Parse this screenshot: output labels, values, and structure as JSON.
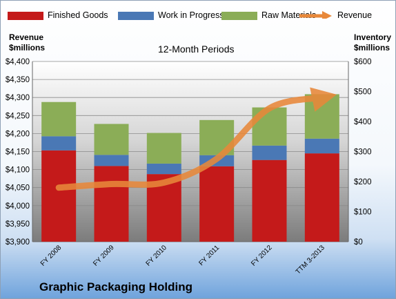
{
  "chart_data": {
    "type": "bar",
    "title": "12-Month Periods",
    "categories": [
      "FY 2008",
      "FY 2009",
      "FY 2010",
      "FY 2011",
      "FY 2012",
      "TTM 3-2013"
    ],
    "series": [
      {
        "name": "Finished Goods",
        "axis": "right",
        "stacked": true,
        "color": "#c41a1a",
        "values": [
          304,
          252,
          225,
          251,
          272,
          294
        ]
      },
      {
        "name": "Work in Progress",
        "axis": "right",
        "stacked": true,
        "color": "#4a78b5",
        "values": [
          47,
          37,
          35,
          37,
          48,
          49
        ]
      },
      {
        "name": "Raw Materials",
        "axis": "right",
        "stacked": true,
        "color": "#8bad57",
        "values": [
          114,
          103,
          102,
          117,
          127,
          148
        ]
      },
      {
        "name": "Revenue",
        "axis": "left",
        "type": "line",
        "color": "#e8883a",
        "values": [
          4050,
          4060,
          4064,
          4130,
          4270,
          4300
        ]
      }
    ],
    "left_axis": {
      "label_line1": "Revenue",
      "label_line2": "$millions",
      "range": [
        3900,
        4400
      ],
      "ticks": [
        "$3,900",
        "$3,950",
        "$4,000",
        "$4,050",
        "$4,100",
        "$4,150",
        "$4,200",
        "$4,250",
        "$4,300",
        "$4,350",
        "$4,400"
      ]
    },
    "right_axis": {
      "label_line1": "Inventory",
      "label_line2": "$millions",
      "range": [
        0,
        600
      ],
      "ticks": [
        "$0",
        "$100",
        "$200",
        "$300",
        "$400",
        "$500",
        "$600"
      ]
    },
    "legend": [
      "Finished Goods",
      "Work in Progress",
      "Raw Materials",
      "Revenue"
    ],
    "legend_position": "top",
    "grid": true
  },
  "company": "Graphic Packaging Holding"
}
